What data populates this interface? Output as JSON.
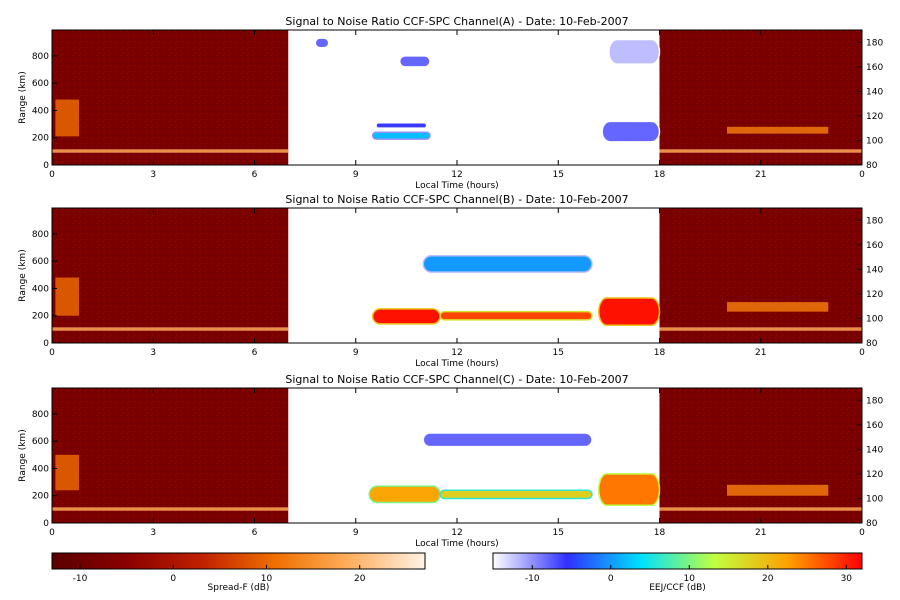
{
  "chart_data": [
    {
      "type": "heatmap",
      "title": "Signal to Noise Ratio CCF-SPC Channel(A) - Date: 10-Feb-2007",
      "xlabel": "Local Time (hours)",
      "ylabel": "Range (km)",
      "x_ticks": [
        "0",
        "3",
        "6",
        "9",
        "12",
        "15",
        "18",
        "21",
        "0"
      ],
      "y_ticks": [
        "0",
        "200",
        "400",
        "600",
        "800"
      ],
      "y2_ticks": [
        "80",
        "100",
        "120",
        "140",
        "160",
        "180"
      ],
      "xlim": [
        0,
        24
      ],
      "ylim": [
        0,
        990
      ],
      "y2lim": [
        80,
        190
      ],
      "night_blocks": [
        [
          0,
          7
        ],
        [
          18,
          24
        ]
      ],
      "eej_blocks": [
        {
          "x": [
            16.5,
            18
          ],
          "y": [
            740,
            920
          ],
          "level": -12
        },
        {
          "x": [
            10.3,
            11.2
          ],
          "y": [
            720,
            800
          ],
          "level": -8
        },
        {
          "x": [
            7.8,
            8.2
          ],
          "y": [
            860,
            930
          ],
          "level": -8
        },
        {
          "x": [
            9.6,
            11.1
          ],
          "y": [
            270,
            310
          ],
          "level": -6
        },
        {
          "x": [
            9.5,
            11.2
          ],
          "y": [
            190,
            240
          ],
          "level": 2
        },
        {
          "x": [
            16.3,
            18
          ],
          "y": [
            170,
            320
          ],
          "level": -8
        }
      ],
      "spread_f": [
        {
          "x": [
            0,
            7
          ],
          "y": [
            90,
            115
          ],
          "level": 18
        },
        {
          "x": [
            0.1,
            0.8
          ],
          "y": [
            210,
            480
          ],
          "level": 10
        },
        {
          "x": [
            18,
            24
          ],
          "y": [
            90,
            115
          ],
          "level": 18
        },
        {
          "x": [
            20,
            23
          ],
          "y": [
            230,
            280
          ],
          "level": 12
        }
      ]
    },
    {
      "type": "heatmap",
      "title": "Signal to Noise Ratio CCF-SPC Channel(B) - Date: 10-Feb-2007",
      "xlabel": "Local Time (hours)",
      "ylabel": "Range (km)",
      "x_ticks": [
        "0",
        "3",
        "6",
        "9",
        "12",
        "15",
        "18",
        "21",
        "0"
      ],
      "y_ticks": [
        "0",
        "200",
        "400",
        "600",
        "800"
      ],
      "y2_ticks": [
        "80",
        "100",
        "120",
        "140",
        "160",
        "180"
      ],
      "xlim": [
        0,
        24
      ],
      "ylim": [
        0,
        990
      ],
      "y2lim": [
        80,
        190
      ],
      "night_blocks": [
        [
          0,
          7
        ],
        [
          18,
          24
        ]
      ],
      "eej_blocks": [
        {
          "x": [
            9.5,
            11.5
          ],
          "y": [
            140,
            250
          ],
          "level": 31
        },
        {
          "x": [
            11.5,
            16.0
          ],
          "y": [
            170,
            230
          ],
          "level": 28
        },
        {
          "x": [
            16.2,
            18
          ],
          "y": [
            130,
            330
          ],
          "level": 31
        },
        {
          "x": [
            11.0,
            16.0
          ],
          "y": [
            520,
            640
          ],
          "level": 0
        }
      ],
      "spread_f": [
        {
          "x": [
            0,
            7
          ],
          "y": [
            90,
            115
          ],
          "level": 18
        },
        {
          "x": [
            0.1,
            0.8
          ],
          "y": [
            200,
            480
          ],
          "level": 10
        },
        {
          "x": [
            18,
            24
          ],
          "y": [
            90,
            115
          ],
          "level": 18
        },
        {
          "x": [
            20,
            23
          ],
          "y": [
            230,
            300
          ],
          "level": 12
        }
      ]
    },
    {
      "type": "heatmap",
      "title": "Signal to Noise Ratio CCF-SPC Channel(C) - Date: 10-Feb-2007",
      "xlabel": "Local Time (hours)",
      "ylabel": "Range (km)",
      "x_ticks": [
        "0",
        "3",
        "6",
        "9",
        "12",
        "15",
        "18",
        "21",
        "0"
      ],
      "y_ticks": [
        "0",
        "200",
        "400",
        "600",
        "800"
      ],
      "y2_ticks": [
        "80",
        "100",
        "120",
        "140",
        "160",
        "180"
      ],
      "xlim": [
        0,
        24
      ],
      "ylim": [
        0,
        990
      ],
      "y2lim": [
        80,
        190
      ],
      "night_blocks": [
        [
          0,
          7
        ],
        [
          18,
          24
        ]
      ],
      "eej_blocks": [
        {
          "x": [
            9.4,
            11.5
          ],
          "y": [
            150,
            270
          ],
          "level": 22
        },
        {
          "x": [
            11.5,
            16.0
          ],
          "y": [
            180,
            240
          ],
          "level": 18
        },
        {
          "x": [
            16.2,
            18
          ],
          "y": [
            130,
            360
          ],
          "level": 25
        },
        {
          "x": [
            11.0,
            16.0
          ],
          "y": [
            560,
            660
          ],
          "level": -8
        }
      ],
      "spread_f": [
        {
          "x": [
            0,
            7
          ],
          "y": [
            90,
            115
          ],
          "level": 18
        },
        {
          "x": [
            0.1,
            0.8
          ],
          "y": [
            240,
            500
          ],
          "level": 10
        },
        {
          "x": [
            18,
            24
          ],
          "y": [
            90,
            115
          ],
          "level": 18
        },
        {
          "x": [
            20,
            23
          ],
          "y": [
            200,
            280
          ],
          "level": 12
        }
      ]
    }
  ],
  "colorbars": [
    {
      "label": "Spread-F (dB)",
      "ticks": [
        "-10",
        "0",
        "10",
        "20"
      ],
      "range": [
        -13,
        27
      ],
      "colors": [
        "#5a0000",
        "#8a0000",
        "#c02000",
        "#f07000",
        "#ffb060",
        "#fff2e6"
      ]
    },
    {
      "label": "EEJ/CCF (dB)",
      "ticks": [
        "-10",
        "0",
        "10",
        "20",
        "30"
      ],
      "range": [
        -15,
        32
      ],
      "colors": [
        "#ffffff",
        "#3030ff",
        "#00e0ff",
        "#c0ff40",
        "#ffa000",
        "#ff0000"
      ]
    }
  ],
  "colors": {
    "night_background": "#7a0000",
    "eej_background": "#ffffff"
  }
}
